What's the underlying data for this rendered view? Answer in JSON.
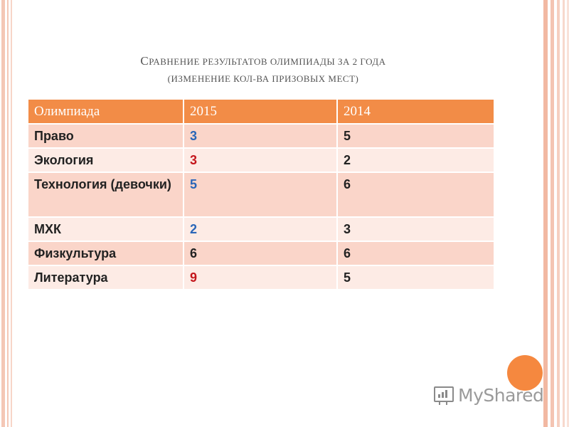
{
  "title": {
    "line1": {
      "cap": "С",
      "rest": "РАВНЕНИЕ РЕЗУЛЬТАТОВ ОЛИМПИАДЫ ЗА 2 ГОДА"
    },
    "line2": "(ИЗМЕНЕНИЕ КОЛ-ВА ПРИЗОВЫХ  МЕСТ)"
  },
  "table": {
    "headers": [
      "Олимпиада",
      "2015",
      "2014"
    ],
    "rows": [
      {
        "name": "Право",
        "v2015": "3",
        "v2014": "5"
      },
      {
        "name": "Экология",
        "v2015": "3",
        "v2014": "2"
      },
      {
        "name": "Технология (девочки)",
        "v2015": "5",
        "v2014": "6"
      },
      {
        "name": "МХК",
        "v2015": "2",
        "v2014": "3"
      },
      {
        "name": "Физкультура",
        "v2015": "6",
        "v2014": "6"
      },
      {
        "name": "Литература",
        "v2015": "9",
        "v2014": "5"
      }
    ]
  },
  "colors": {
    "header_bg": "#f28c47",
    "row_dark": "#fad5c9",
    "row_light": "#fdebe5",
    "increase": "#c4161c",
    "decrease": "#2a66b8"
  },
  "watermark": {
    "text": "MyShared",
    "icon": "presentation-board-icon"
  }
}
